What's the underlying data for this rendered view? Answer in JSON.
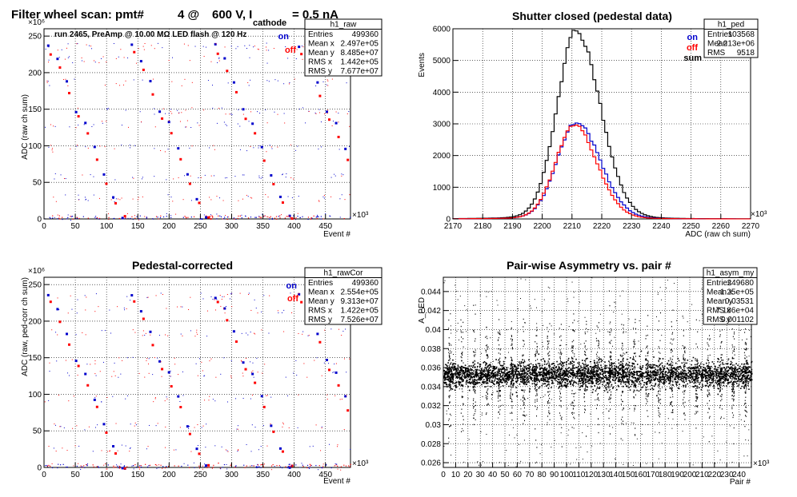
{
  "chart_data": [
    {
      "type": "scatter",
      "title_main": "Filter wheel scan: pmt#",
      "title_pmt": "4 @",
      "title_volt": "600 V, I",
      "title_sub": "cathode",
      "title_cur": "= 0.5 nA",
      "annotation": "run 2465, PreAmp @ 10.00 MΩ LED flash @  120 Hz",
      "xlabel": "Event #",
      "ylabel": "ADC (raw ch sum)",
      "x_exp": "×10³",
      "y_exp": "×10⁶",
      "xlim": [
        0,
        490
      ],
      "ylim": [
        0,
        260
      ],
      "xticks": [
        "0",
        "50",
        "100",
        "150",
        "200",
        "250",
        "300",
        "350",
        "400",
        "450"
      ],
      "yticks": [
        "0",
        "50",
        "100",
        "150",
        "200",
        "250"
      ],
      "legend": [
        "on",
        "off"
      ],
      "colors": {
        "on": "#0000cc",
        "off": "#ff0000"
      },
      "levels_on": [
        236,
        218,
        187,
        148,
        130,
        97,
        59,
        29,
        3
      ],
      "levels_off": [
        226,
        204,
        171,
        138,
        115,
        82,
        50,
        23,
        2
      ],
      "stats": {
        "name": "h1_raw",
        "rows": [
          [
            "Entries",
            "499360"
          ],
          [
            "Mean x",
            "2.497e+05"
          ],
          [
            "Mean y",
            "8.485e+07"
          ],
          [
            "RMS x",
            "1.442e+05"
          ],
          [
            "RMS y",
            "7.677e+07"
          ]
        ]
      }
    },
    {
      "type": "line",
      "title": "Shutter closed (pedestal data)",
      "xlabel": "ADC (raw ch sum)",
      "ylabel": "Events",
      "x_exp": "×10³",
      "xlim": [
        2170,
        2270
      ],
      "ylim": [
        0,
        6000
      ],
      "xticks": [
        "2170",
        "2180",
        "2190",
        "2200",
        "2210",
        "2220",
        "2230",
        "2240",
        "2250",
        "2260",
        "2270"
      ],
      "yticks": [
        "0",
        "1000",
        "2000",
        "3000",
        "4000",
        "5000",
        "6000"
      ],
      "legend": [
        "on",
        "off",
        "sum"
      ],
      "colors": {
        "on": "#0000cc",
        "off": "#ff0000",
        "sum": "#000000"
      },
      "series": [
        {
          "name": "sum",
          "peak": 5750,
          "mean": 2211.5,
          "sigma_left": 6.5,
          "sigma_right": 8.0
        },
        {
          "name": "on",
          "peak": 2950,
          "mean": 2211.5,
          "sigma_left": 6.5,
          "sigma_right": 8.0
        },
        {
          "name": "off",
          "peak": 2850,
          "mean": 2210.8,
          "sigma_left": 6.3,
          "sigma_right": 7.6
        }
      ],
      "stats": {
        "name": "h1_ped",
        "rows": [
          [
            "Entries",
            "103568"
          ],
          [
            "Mean",
            "2.213e+06"
          ],
          [
            "RMS",
            "9518"
          ]
        ]
      }
    },
    {
      "type": "scatter",
      "title": "Pedestal-corrected",
      "xlabel": "Event #",
      "ylabel": "ADC (raw, ped-corr ch sum)",
      "x_exp": "×10³",
      "y_exp": "×10⁶",
      "xlim": [
        0,
        490
      ],
      "ylim": [
        0,
        260
      ],
      "xticks": [
        "0",
        "50",
        "100",
        "150",
        "200",
        "250",
        "300",
        "350",
        "400",
        "450"
      ],
      "yticks": [
        "0",
        "50",
        "100",
        "150",
        "200",
        "250"
      ],
      "legend": [
        "on",
        "off"
      ],
      "colors": {
        "on": "#0000cc",
        "off": "#ff0000"
      },
      "levels_on": [
        234,
        216,
        185,
        146,
        128,
        95,
        57,
        27,
        2
      ],
      "levels_off": [
        224,
        202,
        169,
        136,
        113,
        80,
        48,
        21,
        1
      ],
      "stats": {
        "name": "h1_rawCor",
        "rows": [
          [
            "Entries",
            "499360"
          ],
          [
            "Mean x",
            "2.554e+05"
          ],
          [
            "Mean y",
            "9.313e+07"
          ],
          [
            "RMS x",
            "1.422e+05"
          ],
          [
            "RMS y",
            "7.526e+07"
          ]
        ]
      }
    },
    {
      "type": "scatter",
      "title": "Pair-wise Asymmetry vs. pair #",
      "xlabel": "Pair #",
      "ylabel": "A_PED",
      "x_exp": "×10³",
      "xlim": [
        0,
        250
      ],
      "ylim": [
        0.0255,
        0.0455
      ],
      "xticks": [
        "0",
        "10",
        "20",
        "30",
        "40",
        "50",
        "60",
        "70",
        "80",
        "90",
        "100",
        "110",
        "120",
        "130",
        "140",
        "150",
        "160",
        "170",
        "180",
        "190",
        "200",
        "210",
        "220",
        "230",
        "240"
      ],
      "yticks": [
        "0.026",
        "0.028",
        "0.03",
        "0.032",
        "0.034",
        "0.036",
        "0.038",
        "0.04",
        "0.042",
        "0.044"
      ],
      "band_center": 0.0353,
      "band_halfwidth": 0.0012,
      "spike_spacing": 10,
      "stats": {
        "name": "h1_asym_my",
        "rows": [
          [
            "Entries",
            "249680"
          ],
          [
            "Mean x",
            "1.25e+05"
          ],
          [
            "Mean y",
            "0.03531"
          ],
          [
            "RMS x",
            "7.186e+04"
          ],
          [
            "RMS y",
            "0.001102"
          ]
        ]
      }
    }
  ]
}
